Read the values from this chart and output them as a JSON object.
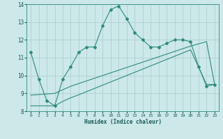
{
  "xlabel": "Humidex (Indice chaleur)",
  "xlim": [
    -0.5,
    23.5
  ],
  "ylim": [
    8,
    14
  ],
  "yticks": [
    8,
    9,
    10,
    11,
    12,
    13,
    14
  ],
  "xticks": [
    0,
    1,
    2,
    3,
    4,
    5,
    6,
    7,
    8,
    9,
    10,
    11,
    12,
    13,
    14,
    15,
    16,
    17,
    18,
    19,
    20,
    21,
    22,
    23
  ],
  "background_color": "#cce8e8",
  "grid_color": "#aacccc",
  "line_color": "#2e8b7a",
  "series1_x": [
    0,
    1,
    2,
    3,
    4,
    5,
    6,
    7,
    8,
    9,
    10,
    11,
    12,
    13,
    14,
    15,
    16,
    17,
    18,
    19,
    20,
    21,
    22,
    23
  ],
  "series1_y": [
    11.3,
    9.8,
    8.6,
    8.3,
    9.8,
    10.5,
    11.3,
    11.6,
    11.6,
    12.8,
    13.7,
    13.9,
    13.2,
    12.4,
    12.0,
    11.6,
    11.6,
    11.8,
    12.0,
    12.0,
    11.9,
    10.5,
    9.4,
    9.5
  ],
  "series2_x": [
    0,
    3,
    4,
    5,
    6,
    7,
    8,
    9,
    10,
    11,
    12,
    13,
    14,
    15,
    16,
    17,
    18,
    19,
    20,
    22,
    23
  ],
  "series2_y": [
    8.9,
    9.0,
    9.2,
    9.4,
    9.55,
    9.7,
    9.85,
    10.0,
    10.15,
    10.3,
    10.45,
    10.6,
    10.75,
    10.9,
    11.05,
    11.2,
    11.35,
    11.5,
    11.65,
    11.9,
    9.5
  ],
  "series3_x": [
    0,
    2,
    3,
    4,
    5,
    6,
    7,
    8,
    9,
    10,
    11,
    12,
    13,
    14,
    15,
    16,
    17,
    18,
    19,
    20,
    22,
    23
  ],
  "series3_y": [
    8.3,
    8.3,
    8.3,
    8.55,
    8.75,
    8.92,
    9.1,
    9.28,
    9.46,
    9.64,
    9.82,
    10.0,
    10.18,
    10.36,
    10.54,
    10.72,
    10.9,
    11.08,
    11.26,
    11.44,
    9.5,
    9.5
  ]
}
